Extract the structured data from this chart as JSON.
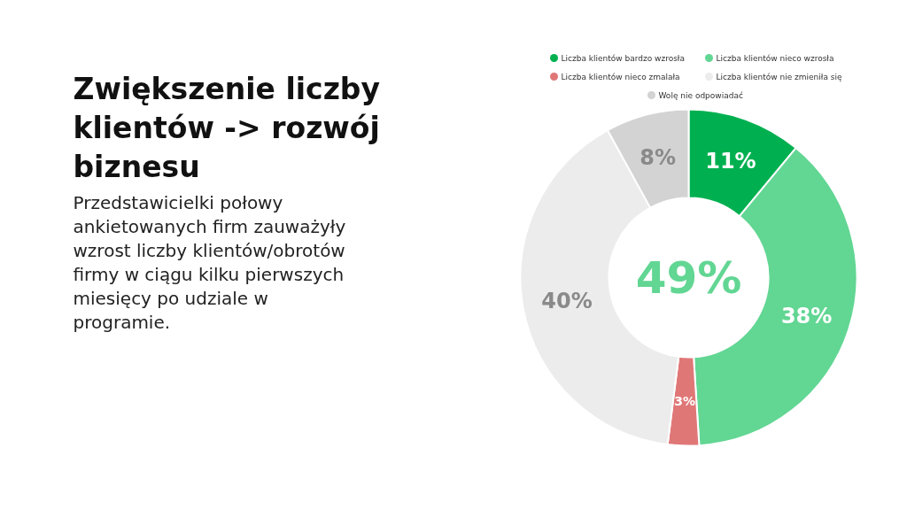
{
  "chart_data": {
    "type": "donut",
    "title": "Zwiększenie liczby klientów -> rozwój biznesu",
    "subtitle": "Przedstawicielki połowy ankietowanych firm zauważyły wzrost liczby klientów/obrotów firmy w ciągu kilku pierwszych miesięcy po udziale w programie.",
    "categories": [
      "Liczba klientów bardzo wzrosła",
      "Liczba klientów nieco wzrosła",
      "Liczba klientów nieco zmalała",
      "Liczba klientów nie zmieniła się",
      "Wolę nie odpowiadać"
    ],
    "values": [
      11,
      38,
      3,
      40,
      8
    ],
    "colors": [
      "#00b050",
      "#62d693",
      "#e07777",
      "#ececec",
      "#d3d3d3"
    ],
    "value_labels": [
      "11%",
      "38%",
      "3%",
      "40%",
      "8%"
    ],
    "annotations": [
      "49%"
    ],
    "legend": "top"
  }
}
